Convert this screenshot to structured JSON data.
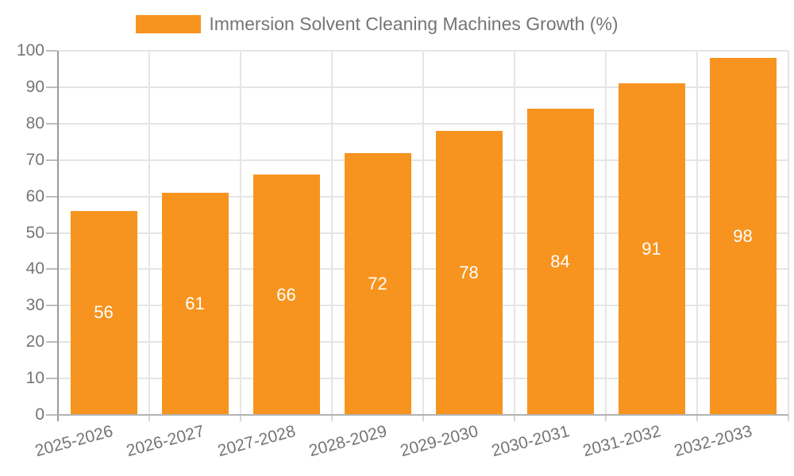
{
  "chart_data": {
    "type": "bar",
    "title": "Immersion Solvent Cleaning Machines Growth (%)",
    "categories": [
      "2025-2026",
      "2026-2027",
      "2027-2028",
      "2028-2029",
      "2029-2030",
      "2030-2031",
      "2031-2032",
      "2032-2033"
    ],
    "series": [
      {
        "name": "Immersion Solvent Cleaning Machines Growth (%)",
        "values": [
          56,
          61,
          66,
          72,
          78,
          84,
          91,
          98
        ]
      }
    ],
    "value_labels_shown": true,
    "xlabel": "",
    "ylabel": "",
    "ylim": [
      0,
      100
    ],
    "yticks": [
      0,
      10,
      20,
      30,
      40,
      50,
      60,
      70,
      80,
      90,
      100
    ],
    "grid": "on",
    "legend_position": "top-center",
    "x_label_rotation_deg": -15
  },
  "legend": {
    "label": "Immersion Solvent Cleaning Machines Growth (%)"
  },
  "colors": {
    "bar": "#F7941F",
    "value_label": "#FFFFFF",
    "grid": "#E5E5E5",
    "axis_line": "#9B9B9B",
    "baseline": "#B3B3B3",
    "tick": "#BDBDBD",
    "tick_label": "#757575",
    "legend_text": "#757575",
    "background": "#FFFFFF"
  }
}
